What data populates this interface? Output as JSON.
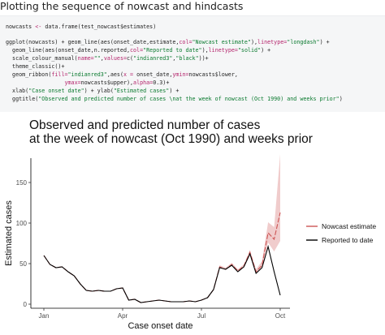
{
  "heading": "Plotting the sequence of nowcast and hindcasts",
  "code": {
    "l1_a": "nowcasts ",
    "l1_op": "<-",
    "l1_b": " data.frame(test_nowcast$estimates)",
    "l2_a": "ggplot(nowcasts) + geom_line(aes(onset_date,estimate,",
    "l2_col": "col=",
    "l2_str": "\"Nowcast estimate\"",
    "l2_b": "),",
    "l2_lt": "linetype=",
    "l2_str2": "\"longdash\"",
    "l2_c": ") +",
    "l3_a": "  geom_line(aes(onset_date,n.reported,",
    "l3_col": "col=",
    "l3_str": "\"Reported to date\"",
    "l3_b": "),",
    "l3_lt": "linetype=",
    "l3_str2": "\"solid\"",
    "l3_c": ") +",
    "l4_a": "  scale_colour_manual(",
    "l4_name": "name=",
    "l4_str": "\"\"",
    "l4_b": ",",
    "l4_values": "values=",
    "l4_c": "c(",
    "l4_str2": "\"indianred3\"",
    "l4_d": ",",
    "l4_str3": "\"black\"",
    "l4_e": "))+",
    "l5": "  theme_classic()+",
    "l6_a": "  geom_ribbon(",
    "l6_fill": "fill=",
    "l6_str": "\"indianred3\"",
    "l6_b": ",aes(",
    "l6_x": "x =",
    "l6_c": " onset_date,",
    "l6_ymin": "ymin=",
    "l6_d": "nowcasts$lower,",
    "l7_a": "                  ",
    "l7_ymax": "ymax=",
    "l7_b": "nowcasts$upper),",
    "l7_alpha": "alpha=",
    "l7_c": "0.3)+",
    "l8_a": "  xlab(",
    "l8_str": "\"Case onset date\"",
    "l8_b": ") + ylab(",
    "l8_str2": "\"Estimated cases\"",
    "l8_c": ") +",
    "l9_a": "  ggtitle(",
    "l9_str": "\"Observed and predicted number of cases \\nat the week of nowcast (Oct 1990) and weeks prior\"",
    "l9_b": ")"
  },
  "chart_data": {
    "type": "line",
    "title_line1": "Observed and predicted number of cases",
    "title_line2": "at the week of nowcast (Oct 1990) and weeks prior",
    "xlabel": "Case onset date",
    "ylabel": "Estimated cases",
    "ylim": [
      0,
      180
    ],
    "yticks": [
      0,
      50,
      100,
      150
    ],
    "xticks": [
      "Jan",
      "Apr",
      "Jul",
      "Oct"
    ],
    "x_week_range": [
      1,
      40
    ],
    "x_tick_weeks": [
      1,
      14,
      27,
      40
    ],
    "legend_position": "right",
    "series": [
      {
        "name": "Reported to date",
        "color": "#000000",
        "weeks": [
          1,
          2,
          3,
          4,
          5,
          6,
          7,
          8,
          9,
          10,
          11,
          12,
          13,
          14,
          15,
          16,
          17,
          18,
          19,
          20,
          21,
          22,
          23,
          24,
          25,
          26,
          27,
          28,
          29,
          30,
          31,
          32,
          33,
          34,
          35,
          36,
          37,
          38,
          39,
          40
        ],
        "values": [
          60,
          49,
          45,
          46,
          40,
          35,
          25,
          17,
          16,
          17,
          16,
          16,
          19,
          20,
          5,
          6,
          2,
          3,
          4,
          5,
          4,
          3,
          3,
          3,
          4,
          3,
          5,
          8,
          18,
          45,
          43,
          48,
          40,
          46,
          62,
          38,
          45,
          71,
          40,
          11
        ]
      },
      {
        "name": "Nowcast estimate",
        "color": "#cd5555",
        "weeks": [
          1,
          2,
          3,
          4,
          5,
          6,
          7,
          8,
          9,
          10,
          11,
          12,
          13,
          14,
          15,
          16,
          17,
          18,
          19,
          20,
          21,
          22,
          23,
          24,
          25,
          26,
          27,
          28,
          29,
          30,
          31,
          32,
          33,
          34,
          35,
          36,
          37,
          38,
          39,
          40
        ],
        "values": [
          60,
          49,
          45,
          46,
          40,
          35,
          25,
          17,
          16,
          17,
          16,
          16,
          19,
          20,
          5,
          6,
          2,
          3,
          4,
          5,
          4,
          3,
          3,
          3,
          4,
          3,
          5,
          8,
          18,
          46,
          43,
          49,
          41,
          47,
          64,
          40,
          48,
          88,
          80,
          113
        ],
        "lower": [
          60,
          49,
          45,
          46,
          40,
          35,
          25,
          17,
          16,
          17,
          16,
          16,
          19,
          20,
          5,
          6,
          2,
          3,
          4,
          5,
          4,
          3,
          3,
          3,
          4,
          3,
          5,
          8,
          18,
          45,
          43,
          48,
          40,
          46,
          62,
          38,
          45,
          76,
          65,
          78
        ],
        "upper": [
          60,
          49,
          45,
          46,
          40,
          35,
          25,
          17,
          16,
          17,
          16,
          16,
          19,
          20,
          5,
          6,
          2,
          3,
          4,
          5,
          4,
          3,
          3,
          3,
          4,
          3,
          5,
          8,
          18,
          48,
          45,
          51,
          43,
          49,
          67,
          43,
          53,
          101,
          95,
          185
        ]
      }
    ]
  }
}
